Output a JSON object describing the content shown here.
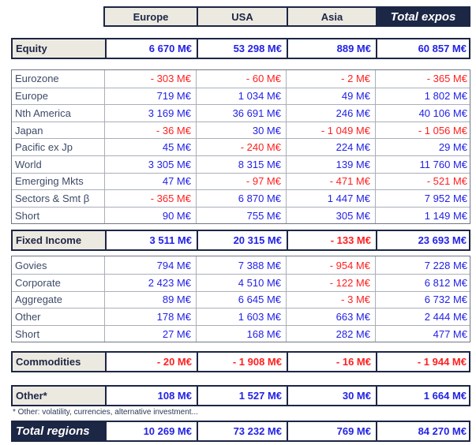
{
  "colors": {
    "accent_navy": "#1c2645",
    "header_beige": "#ece9e0",
    "positive_blue": "#2222e6",
    "negative_red": "#ff2020"
  },
  "table": {
    "columns": [
      "Europe",
      "USA",
      "Asia",
      "Total expos"
    ],
    "unit": "M€",
    "blocks": [
      {
        "type": "summary",
        "label": "Equity",
        "values": [
          "6 670 M€",
          "53 298 M€",
          "889 M€",
          "60 857 M€"
        ]
      },
      {
        "type": "detail",
        "rows": [
          {
            "label": "Eurozone",
            "values": [
              "- 303 M€",
              "- 60 M€",
              "- 2 M€",
              "- 365 M€"
            ]
          },
          {
            "label": "Europe",
            "values": [
              "719 M€",
              "1 034 M€",
              "49 M€",
              "1 802 M€"
            ]
          },
          {
            "label": "Nth America",
            "values": [
              "3 169 M€",
              "36 691 M€",
              "246 M€",
              "40 106 M€"
            ]
          },
          {
            "label": "Japan",
            "values": [
              "- 36 M€",
              "30 M€",
              "- 1 049 M€",
              "- 1 056 M€"
            ]
          },
          {
            "label": "Pacific ex Jp",
            "values": [
              "45 M€",
              "- 240 M€",
              "224 M€",
              "29 M€"
            ]
          },
          {
            "label": "World",
            "values": [
              "3 305 M€",
              "8 315 M€",
              "139 M€",
              "11 760 M€"
            ]
          },
          {
            "label": "Emerging Mkts",
            "values": [
              "47 M€",
              "- 97 M€",
              "- 471 M€",
              "- 521 M€"
            ]
          },
          {
            "label": "Sectors & Smt β",
            "values": [
              "- 365 M€",
              "6 870 M€",
              "1 447 M€",
              "7 952 M€"
            ]
          },
          {
            "label": "Short",
            "values": [
              "90 M€",
              "755 M€",
              "305 M€",
              "1 149 M€"
            ]
          }
        ]
      },
      {
        "type": "summary",
        "label": "Fixed Income",
        "values": [
          "3 511 M€",
          "20 315 M€",
          "- 133 M€",
          "23 693 M€"
        ]
      },
      {
        "type": "detail",
        "rows": [
          {
            "label": "Govies",
            "values": [
              "794 M€",
              "7 388 M€",
              "- 954 M€",
              "7 228 M€"
            ]
          },
          {
            "label": "Corporate",
            "values": [
              "2 423 M€",
              "4 510 M€",
              "- 122 M€",
              "6 812 M€"
            ]
          },
          {
            "label": "Aggregate",
            "values": [
              "89 M€",
              "6 645 M€",
              "- 3 M€",
              "6 732 M€"
            ]
          },
          {
            "label": "Other",
            "values": [
              "178 M€",
              "1 603 M€",
              "663 M€",
              "2 444 M€"
            ]
          },
          {
            "label": "Short",
            "values": [
              "27 M€",
              "168 M€",
              "282 M€",
              "477 M€"
            ]
          }
        ]
      },
      {
        "type": "summary",
        "label": "Commodities",
        "values": [
          "- 20 M€",
          "- 1 908 M€",
          "- 16 M€",
          "- 1 944 M€"
        ]
      },
      {
        "type": "summary",
        "label": "Other*",
        "values": [
          "108 M€",
          "1 527 M€",
          "30 M€",
          "1 664 M€"
        ],
        "footnote": "* Other: volatility, currencies, alternative investment..."
      },
      {
        "type": "summary",
        "variant": "total",
        "label": "Total regions",
        "values": [
          "10 269 M€",
          "73 232 M€",
          "769 M€",
          "84 270 M€"
        ]
      }
    ]
  }
}
